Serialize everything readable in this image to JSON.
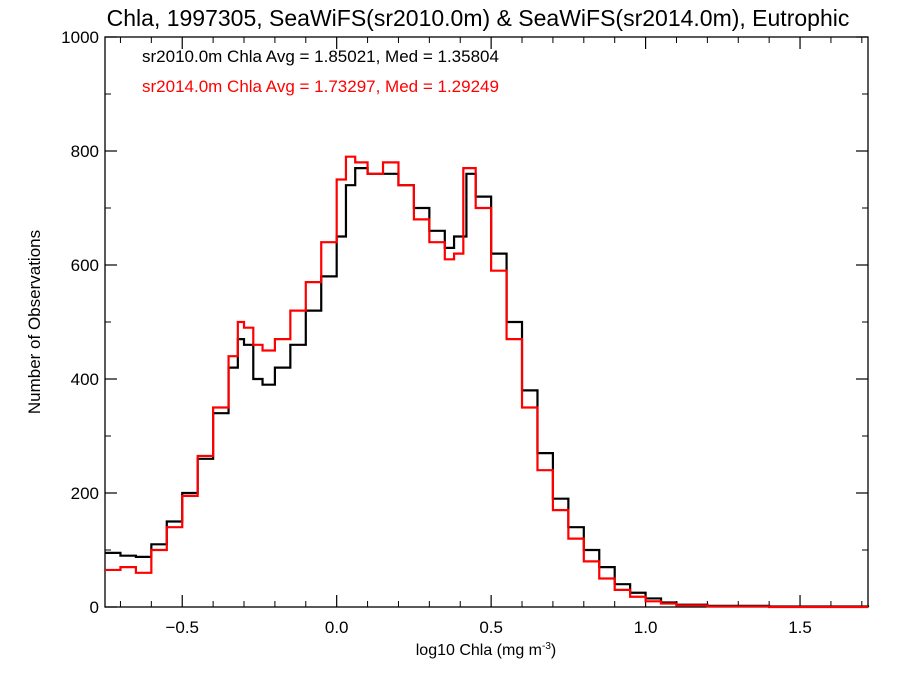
{
  "chart_data": {
    "type": "line",
    "title": "Chla, 1997305, SeaWiFS(sr2010.0m) & SeaWiFS(sr2014.0m), Eutrophic",
    "xlabel": "log10 Chla (mg m",
    "xlabel_sup": "-3",
    "xlabel_end": ")",
    "ylabel": "Number of Observations",
    "xlim": [
      -0.75,
      1.72
    ],
    "ylim": [
      0,
      1000
    ],
    "x_ticks": [
      -0.5,
      0.0,
      0.5,
      1.0,
      1.5
    ],
    "x_tick_labels": [
      "−0.5",
      "0.0",
      "0.5",
      "1.0",
      "1.5"
    ],
    "y_ticks": [
      0,
      200,
      400,
      600,
      800,
      1000
    ],
    "y_tick_labels": [
      "0",
      "200",
      "400",
      "600",
      "800",
      "1000"
    ],
    "grid": false,
    "annotations": [
      {
        "text": "sr2010.0m Chla Avg = 1.85021, Med = 1.35804",
        "color": "#000000"
      },
      {
        "text": "sr2014.0m Chla Avg = 1.73297, Med = 1.29249",
        "color": "#ff0000"
      }
    ],
    "series": [
      {
        "color": "#000000",
        "points": [
          [
            -0.75,
            95
          ],
          [
            -0.7,
            90
          ],
          [
            -0.65,
            88
          ],
          [
            -0.6,
            110
          ],
          [
            -0.55,
            150
          ],
          [
            -0.5,
            200
          ],
          [
            -0.45,
            260
          ],
          [
            -0.4,
            340
          ],
          [
            -0.35,
            420
          ],
          [
            -0.32,
            470
          ],
          [
            -0.3,
            460
          ],
          [
            -0.27,
            400
          ],
          [
            -0.24,
            390
          ],
          [
            -0.2,
            420
          ],
          [
            -0.15,
            460
          ],
          [
            -0.1,
            520
          ],
          [
            -0.05,
            580
          ],
          [
            0.0,
            650
          ],
          [
            0.03,
            740
          ],
          [
            0.06,
            770
          ],
          [
            0.1,
            760
          ],
          [
            0.15,
            760
          ],
          [
            0.2,
            740
          ],
          [
            0.25,
            700
          ],
          [
            0.3,
            660
          ],
          [
            0.35,
            630
          ],
          [
            0.38,
            650
          ],
          [
            0.42,
            760
          ],
          [
            0.45,
            720
          ],
          [
            0.5,
            620
          ],
          [
            0.55,
            500
          ],
          [
            0.6,
            380
          ],
          [
            0.65,
            270
          ],
          [
            0.7,
            190
          ],
          [
            0.75,
            140
          ],
          [
            0.8,
            100
          ],
          [
            0.85,
            70
          ],
          [
            0.9,
            40
          ],
          [
            0.95,
            25
          ],
          [
            1.0,
            15
          ],
          [
            1.05,
            8
          ],
          [
            1.1,
            4
          ],
          [
            1.2,
            2
          ],
          [
            1.4,
            1
          ],
          [
            1.72,
            0
          ]
        ]
      },
      {
        "color": "#ff0000",
        "points": [
          [
            -0.75,
            65
          ],
          [
            -0.7,
            70
          ],
          [
            -0.65,
            60
          ],
          [
            -0.6,
            100
          ],
          [
            -0.55,
            140
          ],
          [
            -0.5,
            195
          ],
          [
            -0.45,
            265
          ],
          [
            -0.4,
            350
          ],
          [
            -0.35,
            440
          ],
          [
            -0.32,
            500
          ],
          [
            -0.3,
            490
          ],
          [
            -0.27,
            460
          ],
          [
            -0.24,
            450
          ],
          [
            -0.2,
            470
          ],
          [
            -0.15,
            520
          ],
          [
            -0.1,
            570
          ],
          [
            -0.05,
            640
          ],
          [
            0.0,
            750
          ],
          [
            0.03,
            790
          ],
          [
            0.06,
            780
          ],
          [
            0.1,
            760
          ],
          [
            0.15,
            780
          ],
          [
            0.2,
            740
          ],
          [
            0.25,
            680
          ],
          [
            0.3,
            640
          ],
          [
            0.35,
            610
          ],
          [
            0.38,
            620
          ],
          [
            0.41,
            770
          ],
          [
            0.45,
            700
          ],
          [
            0.5,
            590
          ],
          [
            0.55,
            470
          ],
          [
            0.6,
            350
          ],
          [
            0.65,
            240
          ],
          [
            0.7,
            170
          ],
          [
            0.75,
            120
          ],
          [
            0.8,
            80
          ],
          [
            0.85,
            50
          ],
          [
            0.9,
            30
          ],
          [
            0.95,
            18
          ],
          [
            1.0,
            10
          ],
          [
            1.05,
            6
          ],
          [
            1.1,
            3
          ],
          [
            1.2,
            1
          ],
          [
            1.4,
            0
          ],
          [
            1.72,
            0
          ]
        ]
      }
    ]
  }
}
